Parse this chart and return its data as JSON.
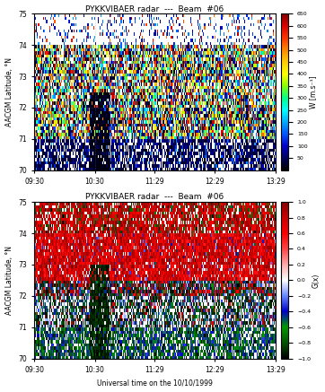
{
  "title": "PYKKVIBAER radar  ---  Beam  #06",
  "xlabel": "Universal time on the 10/10/1999",
  "ylabel": "AACGM Latitude, °N",
  "lat_min": 70.0,
  "lat_max": 75.0,
  "yticks": [
    70,
    71,
    72,
    73,
    74,
    75
  ],
  "xtick_labels": [
    "09:30",
    "10:30",
    "11:29",
    "12:29",
    "13:29"
  ],
  "xtick_positions": [
    0,
    60,
    119,
    179,
    239
  ],
  "colorbar1_label": "W [m.s⁻¹]",
  "colorbar1_ticks": [
    50,
    100,
    150,
    200,
    250,
    300,
    350,
    400,
    450,
    500,
    550,
    600,
    650
  ],
  "colorbar1_vmin": 0,
  "colorbar1_vmax": 650,
  "colorbar2_label": "G(x)",
  "colorbar2_ticks": [
    -1,
    -0.8,
    -0.6,
    -0.4,
    -0.2,
    0,
    0.2,
    0.4,
    0.6,
    0.8,
    1
  ],
  "colorbar2_vmin": -1,
  "colorbar2_vmax": 1,
  "nx": 240,
  "ny": 50,
  "seed": 42
}
